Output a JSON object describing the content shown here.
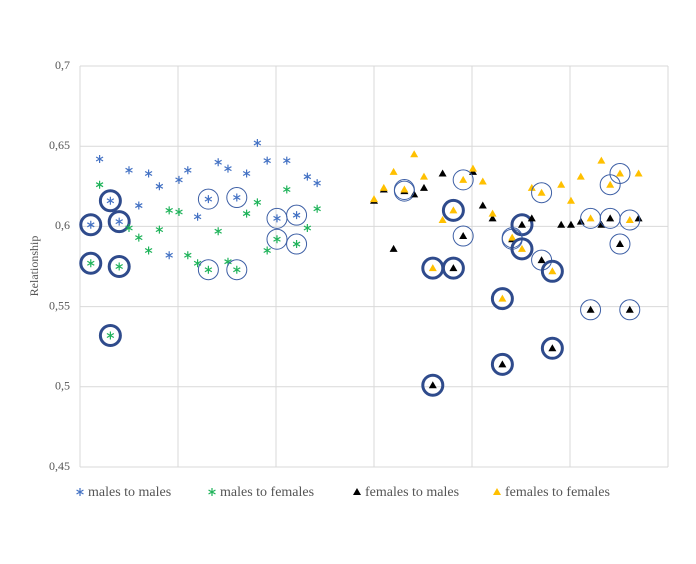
{
  "chart_data": {
    "type": "scatter",
    "y_label": "Relationship",
    "xlim": [
      0,
      6
    ],
    "xgrid": [
      0,
      1,
      2,
      3,
      4,
      5,
      6
    ],
    "ylim": [
      0.45,
      0.7
    ],
    "yticks": [
      {
        "value": 0.45,
        "label": "0,45"
      },
      {
        "value": 0.5,
        "label": "0,5"
      },
      {
        "value": 0.55,
        "label": "0,55"
      },
      {
        "value": 0.6,
        "label": "0,6"
      },
      {
        "value": 0.65,
        "label": "0,65"
      },
      {
        "value": 0.7,
        "label": "0,7"
      }
    ],
    "grid": true,
    "legend": "bottom",
    "series": [
      {
        "name": "males to males",
        "color": "#4472c4",
        "marker": "asterisk",
        "x": [
          0.2,
          0.11,
          0.31,
          0.4,
          0.5,
          0.6,
          0.7,
          0.81,
          0.91,
          1.01,
          1.1,
          1.2,
          1.31,
          1.41,
          1.51,
          1.6,
          1.7,
          1.81,
          1.91,
          2.01,
          2.11,
          2.21,
          2.32,
          2.42
        ],
        "values": [
          0.642,
          0.601,
          0.616,
          0.603,
          0.635,
          0.613,
          0.633,
          0.625,
          0.582,
          0.629,
          0.635,
          0.606,
          0.617,
          0.64,
          0.636,
          0.618,
          0.633,
          0.652,
          0.641,
          0.605,
          0.641,
          0.607,
          0.631,
          0.627
        ],
        "circled": [
          null,
          "bold",
          "bold",
          "bold",
          null,
          null,
          null,
          null,
          null,
          null,
          null,
          null,
          "thin",
          null,
          null,
          "thin",
          null,
          null,
          null,
          "thin",
          null,
          "thin",
          null,
          null
        ]
      },
      {
        "name": "males to females",
        "color": "#1fb35a",
        "marker": "asterisk",
        "x": [
          0.2,
          0.11,
          0.31,
          0.4,
          0.5,
          0.6,
          0.7,
          0.81,
          0.91,
          1.01,
          1.1,
          1.2,
          1.31,
          1.41,
          1.51,
          1.6,
          1.7,
          1.81,
          1.91,
          2.01,
          2.11,
          2.21,
          2.32,
          2.42
        ],
        "values": [
          0.626,
          0.577,
          0.532,
          0.575,
          0.599,
          0.593,
          0.585,
          0.598,
          0.61,
          0.609,
          0.582,
          0.577,
          0.573,
          0.597,
          0.578,
          0.573,
          0.608,
          0.615,
          0.585,
          0.592,
          0.623,
          0.589,
          0.599,
          0.611
        ],
        "circled": [
          null,
          "bold",
          "bold",
          "bold",
          null,
          null,
          null,
          null,
          null,
          null,
          null,
          null,
          "thin",
          null,
          null,
          "thin",
          null,
          null,
          null,
          "thin",
          null,
          "thin",
          null,
          null
        ]
      },
      {
        "name": "females to males",
        "color": "#000000",
        "marker": "triangle",
        "x": [
          3.0,
          3.1,
          3.2,
          3.31,
          3.41,
          3.51,
          3.6,
          3.7,
          3.81,
          3.91,
          4.01,
          4.11,
          4.21,
          4.31,
          4.41,
          4.51,
          4.61,
          4.71,
          4.82,
          4.91,
          5.01,
          5.11,
          5.21,
          5.32,
          5.41,
          5.51,
          5.61,
          5.7
        ],
        "values": [
          0.616,
          0.623,
          0.586,
          0.622,
          0.62,
          0.624,
          0.501,
          0.633,
          0.574,
          0.594,
          0.634,
          0.613,
          0.605,
          0.514,
          0.592,
          0.601,
          0.605,
          0.579,
          0.524,
          0.601,
          0.601,
          0.603,
          0.548,
          0.601,
          0.605,
          0.589,
          0.548,
          0.605
        ],
        "circled": [
          null,
          null,
          null,
          "thin",
          null,
          null,
          "bold",
          null,
          "bold",
          "thin",
          null,
          null,
          null,
          "bold",
          "thin",
          "bold",
          null,
          "thin",
          "bold",
          null,
          null,
          null,
          "thin",
          null,
          "thin",
          "thin",
          "thin",
          null
        ]
      },
      {
        "name": "females to females",
        "color": "#ffc000",
        "marker": "triangle",
        "x": [
          3.0,
          3.1,
          3.2,
          3.31,
          3.41,
          3.51,
          3.6,
          3.7,
          3.81,
          3.91,
          4.01,
          4.11,
          4.21,
          4.31,
          4.41,
          4.51,
          4.61,
          4.71,
          4.82,
          4.91,
          5.01,
          5.11,
          5.21,
          5.32,
          5.41,
          5.51,
          5.61,
          5.7
        ],
        "values": [
          0.617,
          0.624,
          0.634,
          0.623,
          0.645,
          0.631,
          0.574,
          0.604,
          0.61,
          0.629,
          0.636,
          0.628,
          0.608,
          0.555,
          0.593,
          0.586,
          0.624,
          0.621,
          0.572,
          0.626,
          0.616,
          0.631,
          0.605,
          0.641,
          0.626,
          0.633,
          0.604,
          0.633
        ],
        "circled": [
          null,
          null,
          null,
          "thin",
          null,
          null,
          "bold",
          null,
          "bold",
          "thin",
          null,
          null,
          null,
          "bold",
          "thin",
          "bold",
          null,
          "thin",
          "bold",
          null,
          null,
          null,
          "thin",
          null,
          "thin",
          "thin",
          "thin",
          null
        ]
      }
    ]
  }
}
